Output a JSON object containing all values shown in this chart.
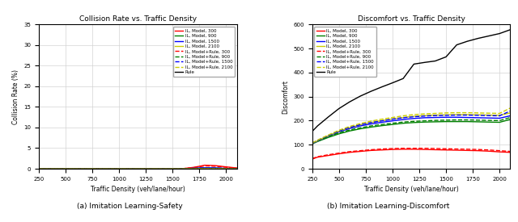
{
  "x": [
    250,
    300,
    400,
    500,
    600,
    700,
    800,
    900,
    1000,
    1100,
    1200,
    1300,
    1400,
    1500,
    1600,
    1700,
    1800,
    1900,
    2000,
    2100
  ],
  "title_left": "Collision Rate vs. Traffic Density",
  "title_right": "Discomfort vs. Traffic Density",
  "xlabel": "Traffic Density (veh/lane/hour)",
  "ylabel_left": "Collision Rate (%)",
  "ylabel_right": "Discomfort",
  "caption_left": "(a) Imitation Learning-Safety",
  "caption_right": "(b) Imitation Learning-Discomfort",
  "ylim_left": [
    0,
    35
  ],
  "yticks_left": [
    0,
    5,
    10,
    15,
    20,
    25,
    30,
    35
  ],
  "ylim_right": [
    0,
    600
  ],
  "yticks_right": [
    0,
    100,
    200,
    300,
    400,
    500,
    600
  ],
  "xticks": [
    250,
    500,
    750,
    1000,
    1250,
    1500,
    1750,
    2000
  ],
  "colors_300": "red",
  "colors_900": "green",
  "colors_1500": "blue",
  "colors_2100": "#cccc00",
  "collision_model_300": [
    0,
    0,
    0,
    0,
    0,
    0,
    0,
    0,
    0,
    0,
    0,
    0,
    0,
    0,
    0.05,
    0.35,
    0.85,
    0.75,
    0.45,
    0.18
  ],
  "collision_model_900": [
    0,
    0,
    0,
    0,
    0,
    0,
    0,
    0,
    0,
    0,
    0,
    0,
    0,
    0,
    0.02,
    0.08,
    0.18,
    0.14,
    0.06,
    0.02
  ],
  "collision_model_1500": [
    0,
    0,
    0,
    0,
    0,
    0,
    0,
    0,
    0,
    0,
    0,
    0,
    0,
    0,
    0.03,
    0.12,
    0.25,
    0.2,
    0.08,
    0.03
  ],
  "collision_model_2100": [
    0,
    0,
    0,
    0,
    0,
    0,
    0,
    0,
    0,
    0,
    0,
    0,
    0,
    0,
    0.01,
    0.04,
    0.08,
    0.06,
    0.02,
    0.01
  ],
  "collision_mr_300": [
    0,
    0,
    0,
    0,
    0,
    0,
    0,
    0,
    0,
    0,
    0,
    0,
    0,
    0,
    0.04,
    0.28,
    0.7,
    0.6,
    0.35,
    0.12
  ],
  "collision_mr_900": [
    0,
    0,
    0,
    0,
    0,
    0,
    0,
    0,
    0,
    0,
    0,
    0,
    0,
    0,
    0.02,
    0.07,
    0.14,
    0.1,
    0.04,
    0.01
  ],
  "collision_mr_1500": [
    0,
    0,
    0,
    0,
    0,
    0,
    0,
    0,
    0,
    0,
    0,
    0,
    0,
    0,
    0.02,
    0.1,
    0.2,
    0.16,
    0.06,
    0.02
  ],
  "collision_mr_2100": [
    0,
    0,
    0,
    0,
    0,
    0,
    0,
    0,
    0,
    0,
    0,
    0,
    0,
    0,
    0.01,
    0.03,
    0.06,
    0.05,
    0.02,
    0.01
  ],
  "collision_rule": [
    0,
    0,
    0,
    0,
    0,
    0,
    0,
    0,
    0,
    0,
    0,
    0,
    0,
    0,
    0,
    0,
    0,
    0,
    0,
    0
  ],
  "discomfort_model_300": [
    40,
    48,
    55,
    62,
    68,
    72,
    76,
    78,
    80,
    81,
    81,
    80,
    79,
    78,
    77,
    76,
    75,
    73,
    70,
    68
  ],
  "discomfort_model_900": [
    103,
    113,
    130,
    145,
    157,
    166,
    173,
    179,
    184,
    189,
    192,
    194,
    195,
    196,
    196,
    196,
    195,
    194,
    193,
    205
  ],
  "discomfort_model_1500": [
    103,
    115,
    135,
    153,
    167,
    178,
    186,
    193,
    199,
    205,
    209,
    212,
    213,
    214,
    214,
    213,
    212,
    211,
    210,
    220
  ],
  "discomfort_model_2100": [
    104,
    116,
    137,
    156,
    171,
    183,
    192,
    200,
    207,
    213,
    218,
    221,
    223,
    224,
    225,
    225,
    224,
    223,
    222,
    232
  ],
  "discomfort_mr_300": [
    42,
    50,
    58,
    65,
    71,
    75,
    79,
    82,
    84,
    85,
    85,
    85,
    84,
    83,
    82,
    81,
    80,
    78,
    75,
    72
  ],
  "discomfort_mr_900": [
    105,
    116,
    133,
    149,
    161,
    170,
    178,
    184,
    189,
    194,
    197,
    199,
    201,
    202,
    203,
    203,
    202,
    201,
    200,
    213
  ],
  "discomfort_mr_1500": [
    106,
    118,
    138,
    157,
    172,
    183,
    192,
    199,
    206,
    212,
    216,
    219,
    221,
    222,
    223,
    223,
    222,
    221,
    220,
    240
  ],
  "discomfort_mr_2100": [
    107,
    119,
    140,
    160,
    176,
    188,
    198,
    206,
    213,
    220,
    225,
    228,
    230,
    232,
    233,
    233,
    232,
    231,
    230,
    252
  ],
  "discomfort_rule": [
    155,
    178,
    215,
    250,
    278,
    302,
    322,
    340,
    357,
    375,
    435,
    442,
    448,
    465,
    515,
    530,
    542,
    552,
    562,
    578
  ]
}
